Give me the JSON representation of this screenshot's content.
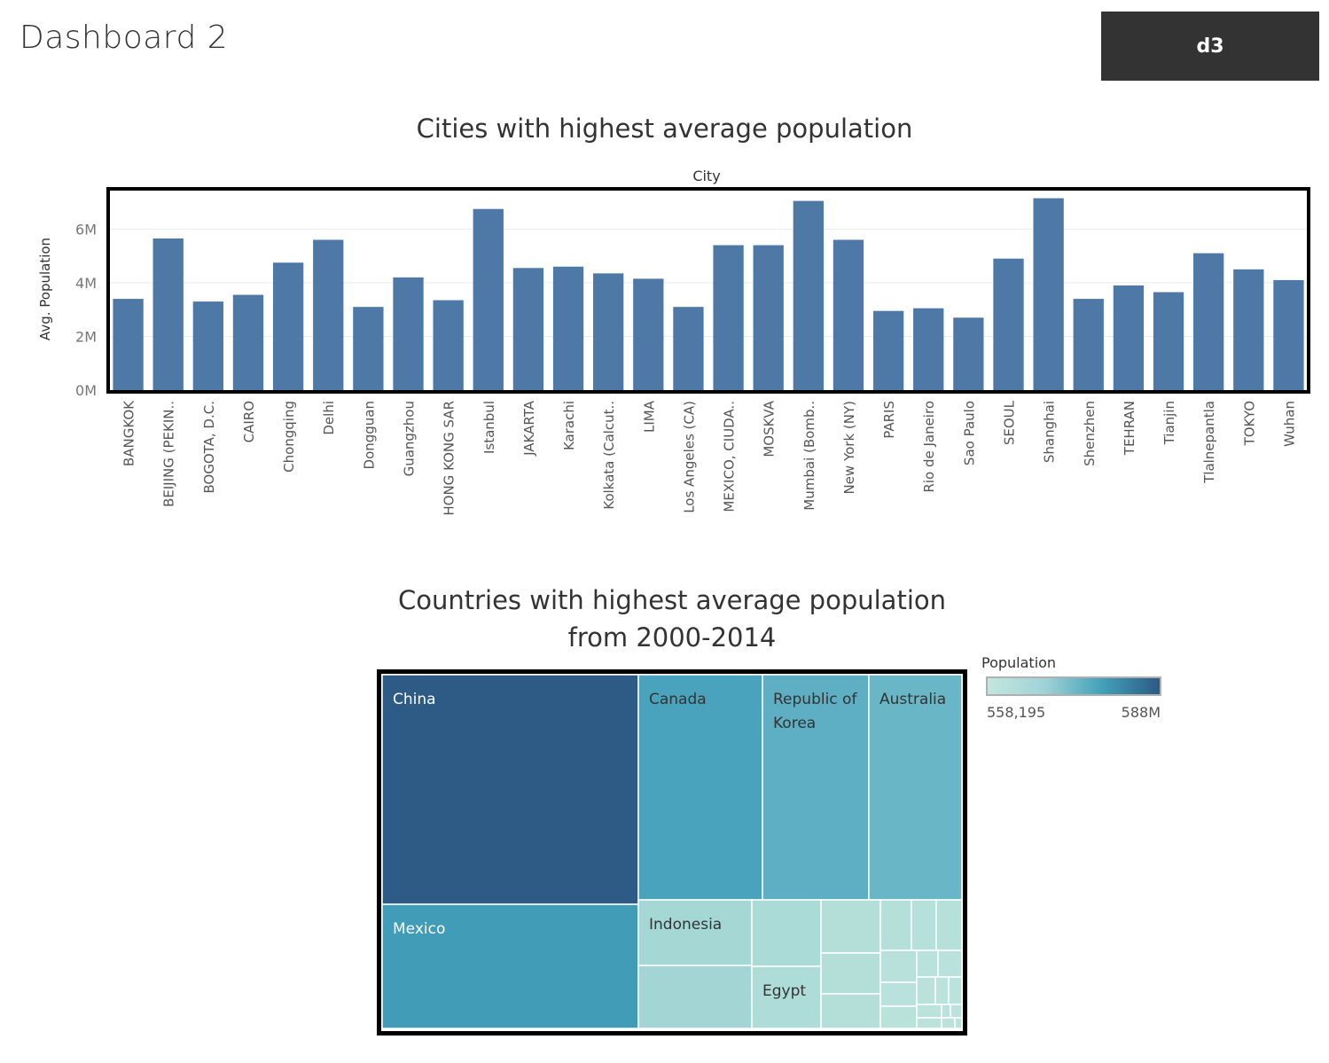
{
  "dashboard": {
    "title": "Dashboard 2",
    "button_label": "d3"
  },
  "chart_data": [
    {
      "type": "bar",
      "title": "Cities with highest average population",
      "xlabel": "City",
      "ylabel": "Avg. Population",
      "ylim": [
        0,
        7500000
      ],
      "yticks": [
        {
          "value": 0,
          "label": "0M"
        },
        {
          "value": 2000000,
          "label": "2M"
        },
        {
          "value": 4000000,
          "label": "4M"
        },
        {
          "value": 6000000,
          "label": "6M"
        }
      ],
      "grid": true,
      "categories": [
        "BANGKOK",
        "BEIJING (PEKIN..",
        "BOGOTA, D.C.",
        "CAIRO",
        "Chongqing",
        "Delhi",
        "Dongguan",
        "Guangzhou",
        "HONG KONG SAR",
        "Istanbul",
        "JAKARTA",
        "Karachi",
        "Kolkata (Calcut..",
        "LIMA",
        "Los Angeles (CA)",
        "MEXICO, CIUDA..",
        "MOSKVA",
        "Mumbai (Bomb..",
        "New York (NY)",
        "PARIS",
        "Rio de Janeiro",
        "Sao Paulo",
        "SEOUL",
        "Shanghai",
        "Shenzhen",
        "TEHRAN",
        "Tianjin",
        "Tlalnepantla",
        "TOKYO",
        "Wuhan"
      ],
      "values": [
        3400000,
        5650000,
        3300000,
        3550000,
        4750000,
        5600000,
        3100000,
        4200000,
        3350000,
        6750000,
        4550000,
        4600000,
        4350000,
        4150000,
        3100000,
        5400000,
        5400000,
        7050000,
        5600000,
        2950000,
        3050000,
        2700000,
        4900000,
        7150000,
        3400000,
        3900000,
        3650000,
        5100000,
        4500000,
        4100000
      ],
      "color": "#4e79a7"
    },
    {
      "type": "treemap",
      "title": "Countries with highest average population from 2000-2014",
      "labeled_cells": [
        "China",
        "Mexico",
        "Canada",
        "Republic of Korea",
        "Australia",
        "Indonesia",
        "Egypt"
      ],
      "legend": {
        "title": "Population",
        "min_label": "558,195",
        "max_label": "588M",
        "colors": [
          "#c4e6df",
          "#9fd2d6",
          "#43a0b9",
          "#2b5a84"
        ]
      }
    }
  ]
}
